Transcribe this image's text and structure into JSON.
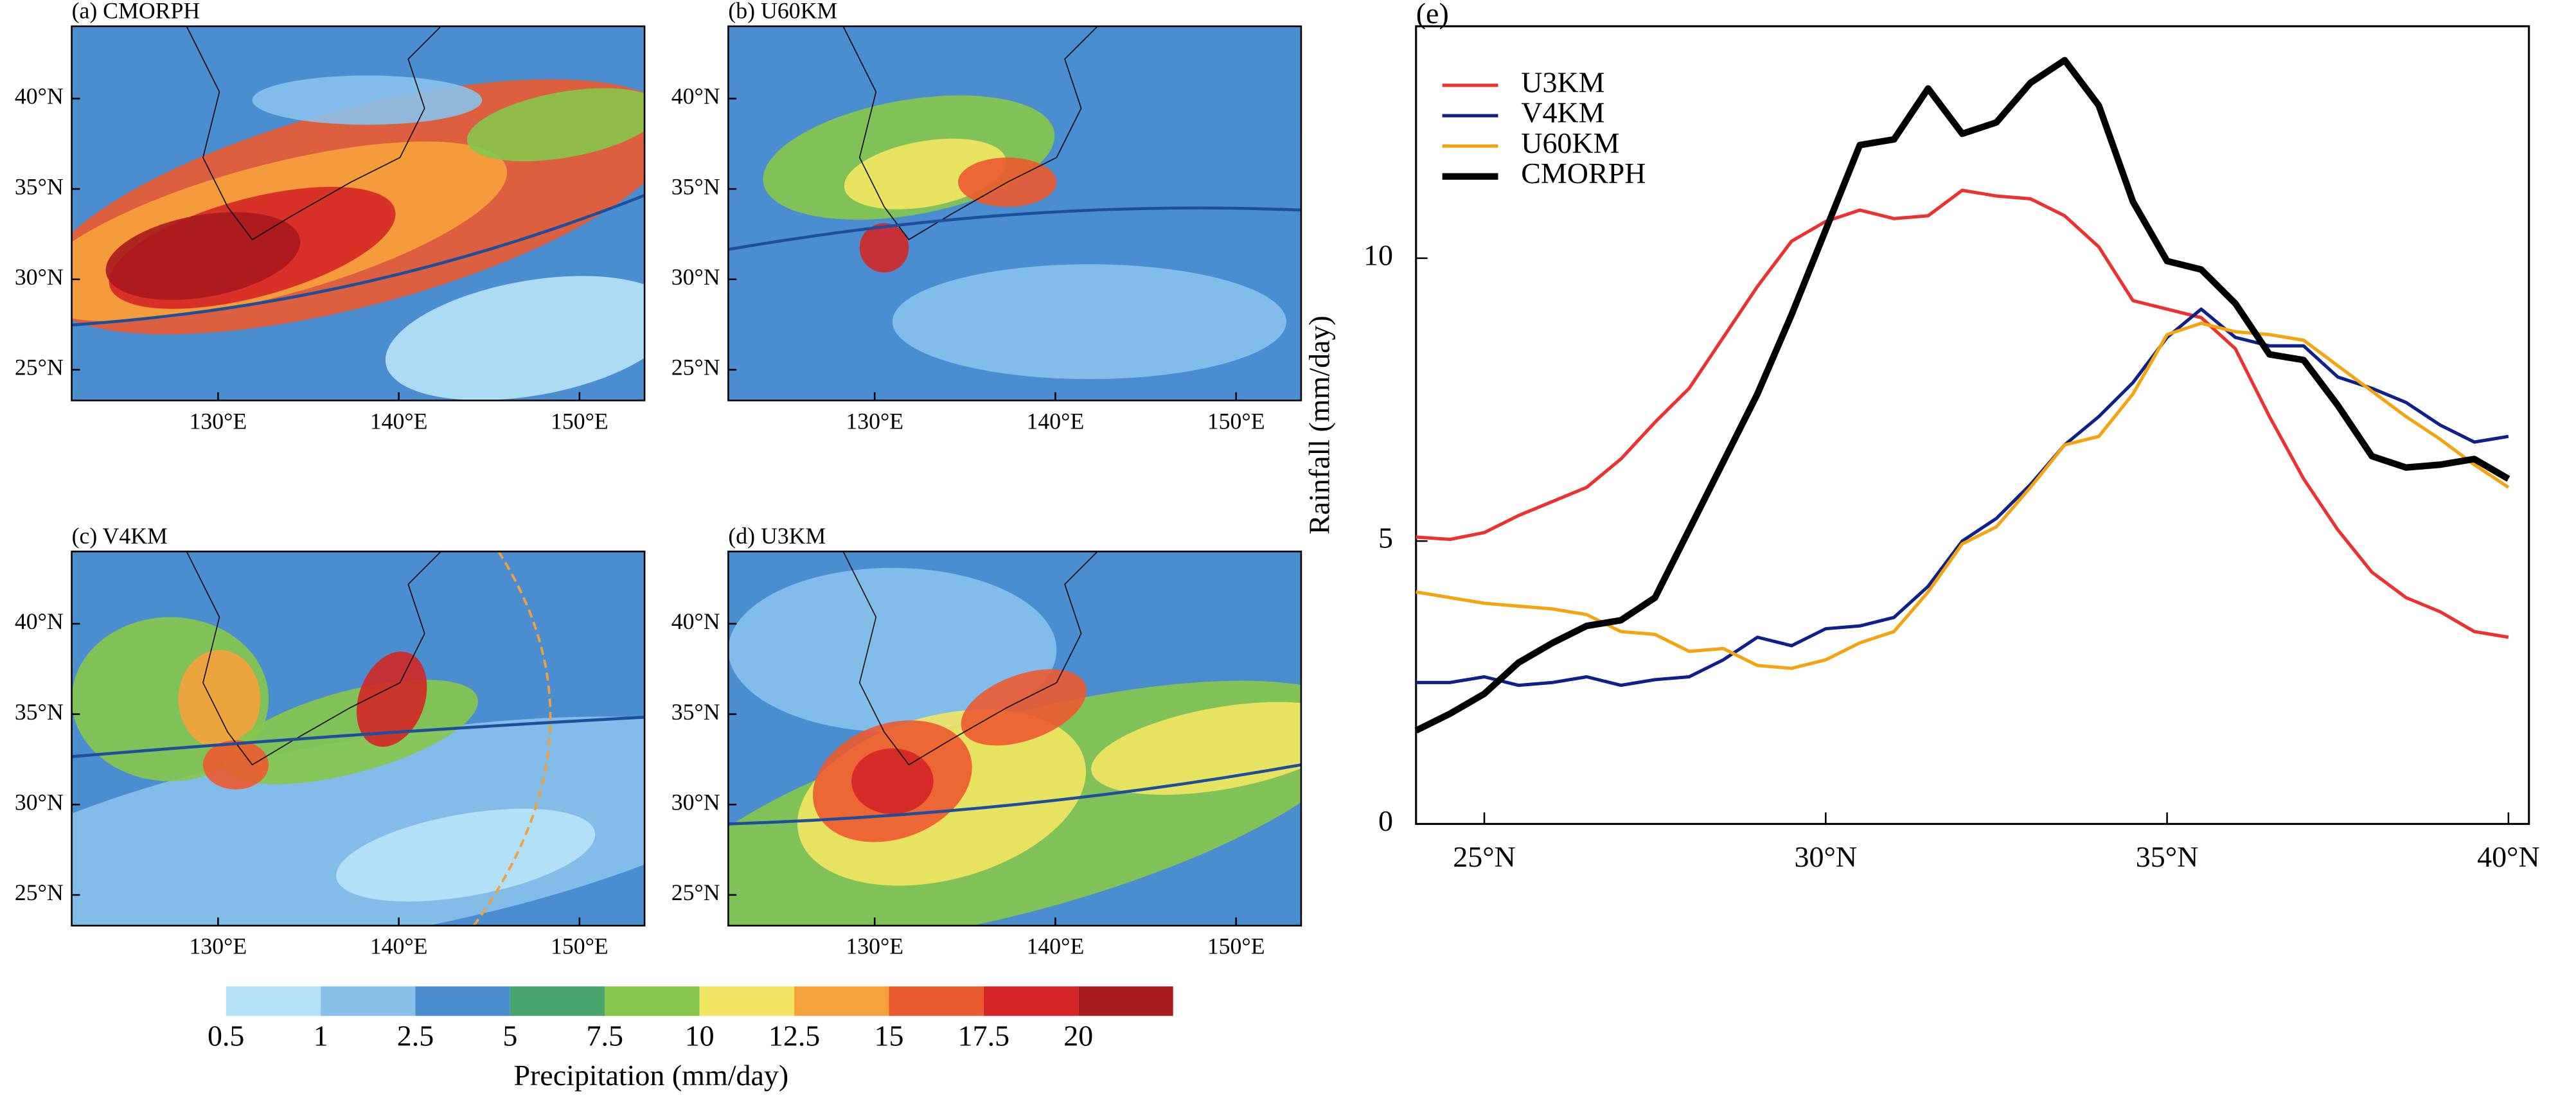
{
  "maps": {
    "xlim": [
      121.9,
      153.6
    ],
    "ylim": [
      23.3,
      44
    ],
    "xticks": [
      {
        "value": 130,
        "label": "130°E"
      },
      {
        "value": 140,
        "label": "140°E"
      },
      {
        "value": 150,
        "label": "150°E"
      }
    ],
    "yticks": [
      {
        "value": 25,
        "label": "25°N"
      },
      {
        "value": 30,
        "label": "30°N"
      },
      {
        "value": 35,
        "label": "35°N"
      },
      {
        "value": 40,
        "label": "40°N"
      }
    ],
    "panels": [
      "(a) CMORPH",
      "(b) U60KM",
      "(c) V4KM",
      "(d) U3KM"
    ]
  },
  "colorbar": {
    "label": "Precipitation (mm/day)",
    "ticks": [
      0.5,
      1,
      2.5,
      5,
      7.5,
      10,
      12.5,
      15,
      17.5,
      20
    ],
    "colors": [
      "#b7e3f7",
      "#88c1ea",
      "#4a8ed0",
      "#46a46c",
      "#86c64a",
      "#f2e662",
      "#f6a23c",
      "#ec5a30",
      "#d42626",
      "#a81a1e"
    ]
  },
  "chart_data": {
    "type": "line",
    "title": "(e)",
    "y_label": "Rainfall (mm/day)",
    "x": [
      24,
      24.5,
      25,
      25.5,
      26,
      26.5,
      27,
      27.5,
      28,
      28.5,
      29,
      29.5,
      30,
      30.5,
      31,
      31.5,
      32,
      32.5,
      33,
      33.5,
      34,
      34.5,
      35,
      35.5,
      36,
      36.5,
      37,
      37.5,
      38,
      38.5,
      39,
      39.5,
      40
    ],
    "xlim": [
      24,
      40.3
    ],
    "ylim": [
      0,
      14.1
    ],
    "xticks": [
      {
        "value": 25,
        "label": "25°N"
      },
      {
        "value": 30,
        "label": "30°N"
      },
      {
        "value": 35,
        "label": "35°N"
      },
      {
        "value": 40,
        "label": "40°N"
      }
    ],
    "yticks": [
      0,
      5,
      10
    ],
    "series": [
      {
        "name": "U3KM",
        "color": "#ee3030",
        "width": 2,
        "values": [
          5.07,
          5.03,
          5.15,
          5.45,
          5.7,
          5.95,
          6.45,
          7.1,
          7.7,
          8.6,
          9.5,
          10.3,
          10.65,
          10.85,
          10.7,
          10.75,
          11.2,
          11.1,
          11.05,
          10.75,
          10.2,
          9.25,
          9.1,
          8.95,
          8.4,
          7.2,
          6.1,
          5.2,
          4.45,
          4.0,
          3.75,
          3.4,
          3.3
        ]
      },
      {
        "name": "V4KM",
        "color": "#10208a",
        "width": 2,
        "values": [
          2.5,
          2.5,
          2.6,
          2.45,
          2.5,
          2.6,
          2.45,
          2.55,
          2.6,
          2.9,
          3.3,
          3.15,
          3.45,
          3.5,
          3.65,
          4.2,
          5.0,
          5.4,
          6.0,
          6.7,
          7.2,
          7.8,
          8.6,
          9.1,
          8.6,
          8.45,
          8.45,
          7.9,
          7.7,
          7.45,
          7.05,
          6.75,
          6.85
        ]
      },
      {
        "name": "U60KM",
        "color": "#f5a30f",
        "width": 2,
        "values": [
          4.1,
          4.0,
          3.9,
          3.85,
          3.8,
          3.7,
          3.4,
          3.35,
          3.05,
          3.1,
          2.8,
          2.75,
          2.9,
          3.2,
          3.4,
          4.1,
          4.95,
          5.25,
          5.95,
          6.7,
          6.85,
          7.6,
          8.65,
          8.85,
          8.7,
          8.65,
          8.55,
          8.1,
          7.65,
          7.2,
          6.8,
          6.35,
          5.95
        ]
      },
      {
        "name": "CMORPH",
        "color": "#000000",
        "width": 4,
        "values": [
          1.65,
          1.95,
          2.3,
          2.85,
          3.2,
          3.5,
          3.6,
          4.0,
          5.2,
          6.4,
          7.6,
          9.0,
          10.5,
          12.0,
          12.1,
          13.0,
          12.2,
          12.4,
          13.1,
          13.5,
          12.7,
          11.0,
          9.95,
          9.8,
          9.2,
          8.3,
          8.2,
          7.4,
          6.5,
          6.3,
          6.35,
          6.45,
          6.1
        ]
      }
    ]
  }
}
